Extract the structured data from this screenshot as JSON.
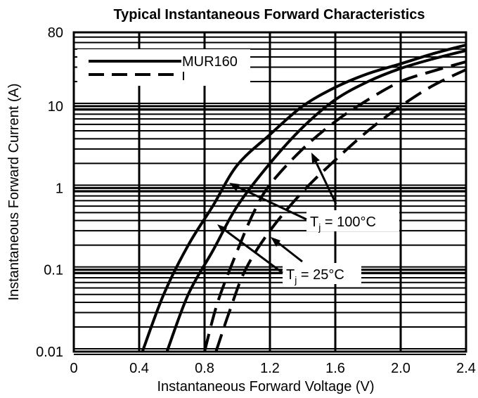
{
  "chart_data": {
    "type": "line",
    "title": "Typical Instantaneous Forward Characteristics",
    "xlabel": "Instantaneous Forward Voltage (V)",
    "ylabel": "Instantaneous Forward Current (A)",
    "x_scale": "linear",
    "y_scale": "log",
    "xlim": [
      0,
      2.4
    ],
    "ylim": [
      0.01,
      80
    ],
    "x_ticks": [
      "0",
      "0.4",
      "0.8",
      "1.2",
      "1.6",
      "2.0",
      "2.4"
    ],
    "y_ticks": [
      {
        "value": 80,
        "label": "80"
      },
      {
        "value": 10,
        "label": "10"
      },
      {
        "value": 1,
        "label": "1"
      },
      {
        "value": 0.1,
        "label": "0.1"
      },
      {
        "value": 0.01,
        "label": "0.01"
      }
    ],
    "grid": true,
    "legend": {
      "position": "top-left",
      "entries": [
        {
          "label": "MUR160",
          "style": "solid"
        },
        {
          "label": "",
          "style": "dashed"
        }
      ]
    },
    "series": [
      {
        "style": "solid",
        "temperature": "100°C",
        "points": [
          [
            0.42,
            0.01
          ],
          [
            0.55,
            0.05
          ],
          [
            0.7,
            0.2
          ],
          [
            0.85,
            0.6
          ],
          [
            1.0,
            1.9
          ],
          [
            1.2,
            4.5
          ],
          [
            1.4,
            10
          ],
          [
            1.6,
            17
          ],
          [
            1.8,
            25
          ],
          [
            2.0,
            33
          ],
          [
            2.2,
            44
          ],
          [
            2.4,
            56
          ]
        ]
      },
      {
        "style": "solid",
        "temperature": "25°C",
        "points": [
          [
            0.57,
            0.01
          ],
          [
            0.7,
            0.05
          ],
          [
            0.85,
            0.17
          ],
          [
            1.0,
            0.6
          ],
          [
            1.2,
            2.0
          ],
          [
            1.4,
            5.5
          ],
          [
            1.6,
            12
          ],
          [
            1.8,
            20
          ],
          [
            2.0,
            29
          ],
          [
            2.2,
            38
          ],
          [
            2.4,
            48
          ]
        ]
      },
      {
        "style": "dashed",
        "temperature": "100°C",
        "points": [
          [
            0.8,
            0.01
          ],
          [
            0.88,
            0.04
          ],
          [
            1.0,
            0.17
          ],
          [
            1.1,
            0.5
          ],
          [
            1.2,
            1.1
          ],
          [
            1.4,
            3.0
          ],
          [
            1.6,
            6.5
          ],
          [
            1.8,
            12
          ],
          [
            2.0,
            20
          ],
          [
            2.2,
            27
          ],
          [
            2.4,
            35
          ]
        ]
      },
      {
        "style": "dashed",
        "temperature": "25°C",
        "points": [
          [
            0.87,
            0.01
          ],
          [
            0.95,
            0.03
          ],
          [
            1.05,
            0.1
          ],
          [
            1.2,
            0.3
          ],
          [
            1.4,
            0.9
          ],
          [
            1.6,
            2.2
          ],
          [
            1.8,
            5.0
          ],
          [
            2.0,
            10
          ],
          [
            2.2,
            18
          ],
          [
            2.4,
            28
          ]
        ]
      }
    ],
    "annotations": [
      {
        "text": "T",
        "subscript": "j",
        "suffix": " = 100°C"
      },
      {
        "text": "T",
        "subscript": "j",
        "suffix": " = 25°C"
      }
    ]
  }
}
